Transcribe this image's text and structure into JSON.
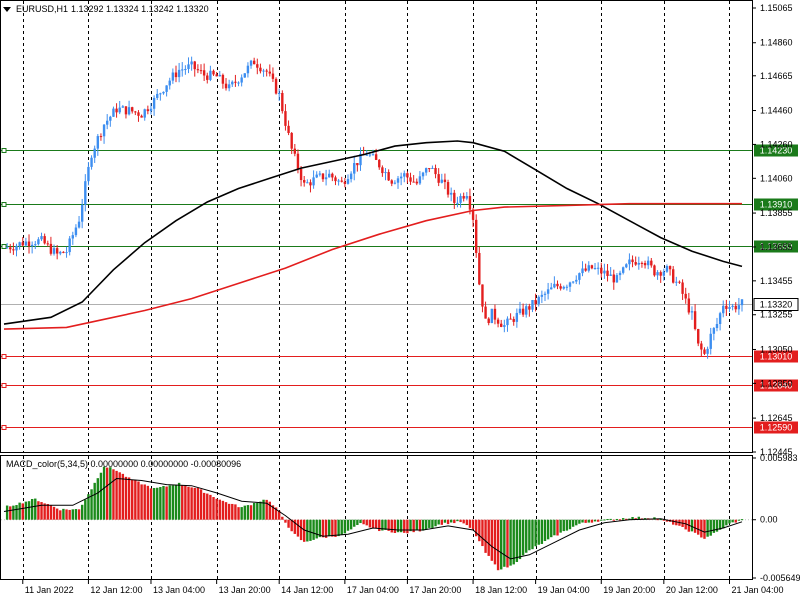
{
  "header": {
    "symbol": "EURUSD,H1",
    "ohlc": "1.13292 1.13324 1.13242 1.13320"
  },
  "macd_header": {
    "label": "MACD_color(5,34,5) 0.00000000 0.00000000 -0.00080096"
  },
  "colors": {
    "bull": "#3d8ef0",
    "bear": "#e31e1e",
    "sma_black": "#000000",
    "sma_red": "#e31e1e",
    "support_green": "#1a7a1a",
    "resistance_red": "#e31e1e",
    "macd_pos": "#1a8a1a",
    "macd_neg": "#e31e1e",
    "current_price_line": "#b0b0b0"
  },
  "chart_data": [
    {
      "type": "candlestick",
      "title": "EURUSD,H1",
      "ylim": [
        1.12445,
        1.15065
      ],
      "y_ticks": [
        "1.15065",
        "1.14860",
        "1.14665",
        "1.14460",
        "1.14260",
        "1.14060",
        "1.13855",
        "1.13655",
        "1.13455",
        "1.13255",
        "1.13050",
        "1.12850",
        "1.12645",
        "1.12445"
      ],
      "x_ticks": [
        "11 Jan 2022",
        "12 Jan 12:00",
        "13 Jan 04:00",
        "13 Jan 20:00",
        "14 Jan 12:00",
        "17 Jan 04:00",
        "17 Jan 20:00",
        "18 Jan 12:00",
        "19 Jan 04:00",
        "19 Jan 20:00",
        "20 Jan 12:00",
        "21 Jan 04:00"
      ],
      "current_price": "1.13320",
      "horizontal_levels": [
        {
          "value": "1.14230",
          "role": "support"
        },
        {
          "value": "1.13910",
          "role": "support"
        },
        {
          "value": "1.13660",
          "role": "support"
        },
        {
          "value": "1.13010",
          "role": "resistance"
        },
        {
          "value": "1.12840",
          "role": "resistance"
        },
        {
          "value": "1.12590",
          "role": "resistance"
        }
      ],
      "price_path": [
        [
          0,
          1.1365
        ],
        [
          3,
          1.1366
        ],
        [
          6,
          1.1368
        ],
        [
          9,
          1.1369
        ],
        [
          12,
          1.1369
        ],
        [
          15,
          1.1364
        ],
        [
          17,
          1.1361
        ],
        [
          20,
          1.1363
        ],
        [
          24,
          1.1382
        ],
        [
          28,
          1.1421
        ],
        [
          32,
          1.1438
        ],
        [
          36,
          1.1447
        ],
        [
          40,
          1.1446
        ],
        [
          44,
          1.1444
        ],
        [
          48,
          1.1452
        ],
        [
          52,
          1.1462
        ],
        [
          56,
          1.147
        ],
        [
          60,
          1.1472
        ],
        [
          64,
          1.1467
        ],
        [
          68,
          1.1466
        ],
        [
          72,
          1.1459
        ],
        [
          76,
          1.1467
        ],
        [
          80,
          1.1475
        ],
        [
          84,
          1.1469
        ],
        [
          88,
          1.1455
        ],
        [
          92,
          1.1423
        ],
        [
          96,
          1.1402
        ],
        [
          100,
          1.1406
        ],
        [
          104,
          1.1408
        ],
        [
          108,
          1.1403
        ],
        [
          112,
          1.1414
        ],
        [
          116,
          1.1421
        ],
        [
          120,
          1.1414
        ],
        [
          124,
          1.1405
        ],
        [
          128,
          1.1408
        ],
        [
          132,
          1.1403
        ],
        [
          136,
          1.1413
        ],
        [
          140,
          1.1404
        ],
        [
          144,
          1.1392
        ],
        [
          148,
          1.1398
        ],
        [
          150,
          1.1383
        ],
        [
          152,
          1.1344
        ],
        [
          154,
          1.1321
        ],
        [
          156,
          1.1326
        ],
        [
          160,
          1.1319
        ],
        [
          164,
          1.1325
        ],
        [
          168,
          1.133
        ],
        [
          172,
          1.1336
        ],
        [
          176,
          1.1342
        ],
        [
          180,
          1.1344
        ],
        [
          184,
          1.135
        ],
        [
          188,
          1.1353
        ],
        [
          192,
          1.135
        ],
        [
          196,
          1.1346
        ],
        [
          200,
          1.1356
        ],
        [
          204,
          1.1359
        ],
        [
          208,
          1.1351
        ],
        [
          212,
          1.1352
        ],
        [
          216,
          1.1342
        ],
        [
          220,
          1.1325
        ],
        [
          222,
          1.1307
        ],
        [
          224,
          1.1302
        ],
        [
          226,
          1.1313
        ],
        [
          228,
          1.132
        ],
        [
          230,
          1.1332
        ],
        [
          233,
          1.133
        ],
        [
          236,
          1.1332
        ]
      ],
      "series": [
        {
          "name": "",
          "type": "line",
          "values": [
            [
              0,
              1.132
            ],
            [
              15,
              1.1324
            ],
            [
              25,
              1.1333
            ],
            [
              35,
              1.1352
            ],
            [
              45,
              1.1368
            ],
            [
              55,
              1.1381
            ],
            [
              65,
              1.1392
            ],
            [
              75,
              1.14
            ],
            [
              85,
              1.1406
            ],
            [
              95,
              1.1412
            ],
            [
              105,
              1.1416
            ],
            [
              115,
              1.142
            ],
            [
              125,
              1.1425
            ],
            [
              135,
              1.1427
            ],
            [
              145,
              1.1428
            ],
            [
              150,
              1.1427
            ],
            [
              160,
              1.1422
            ],
            [
              170,
              1.1411
            ],
            [
              180,
              1.14
            ],
            [
              190,
              1.1391
            ],
            [
              200,
              1.1381
            ],
            [
              210,
              1.1371
            ],
            [
              220,
              1.1363
            ],
            [
              230,
              1.1357
            ],
            [
              236,
              1.1354
            ]
          ]
        },
        {
          "name": "",
          "type": "line",
          "values": [
            [
              0,
              1.1317
            ],
            [
              20,
              1.1318
            ],
            [
              30,
              1.1322
            ],
            [
              45,
              1.1328
            ],
            [
              60,
              1.1335
            ],
            [
              75,
              1.1344
            ],
            [
              90,
              1.1353
            ],
            [
              105,
              1.1364
            ],
            [
              120,
              1.1373
            ],
            [
              135,
              1.1381
            ],
            [
              150,
              1.1387
            ],
            [
              160,
              1.1389
            ],
            [
              180,
              1.139
            ],
            [
              200,
              1.1391
            ],
            [
              220,
              1.1391
            ],
            [
              236,
              1.1391
            ]
          ]
        }
      ]
    },
    {
      "type": "bar",
      "title": "MACD_color(5,34,5)",
      "ylim": [
        -0.005649,
        0.005983
      ],
      "y_ticks": [
        "0.005983",
        "0.00",
        "-0.005649"
      ],
      "histogram": [
        [
          0,
          0.0012
        ],
        [
          10,
          0.002
        ],
        [
          18,
          0.001
        ],
        [
          24,
          0.001
        ],
        [
          28,
          0.003
        ],
        [
          32,
          0.0052
        ],
        [
          36,
          0.0048
        ],
        [
          40,
          0.004
        ],
        [
          48,
          0.003
        ],
        [
          56,
          0.0035
        ],
        [
          62,
          0.003
        ],
        [
          70,
          0.0018
        ],
        [
          76,
          0.0012
        ],
        [
          84,
          0.002
        ],
        [
          88,
          0.0008
        ],
        [
          92,
          -0.0012
        ],
        [
          96,
          -0.0022
        ],
        [
          100,
          -0.0018
        ],
        [
          108,
          -0.0015
        ],
        [
          114,
          -0.0004
        ],
        [
          120,
          -0.001
        ],
        [
          128,
          -0.0013
        ],
        [
          134,
          -0.001
        ],
        [
          140,
          -0.0004
        ],
        [
          146,
          -0.0002
        ],
        [
          150,
          -0.001
        ],
        [
          154,
          -0.0032
        ],
        [
          158,
          -0.0048
        ],
        [
          162,
          -0.0045
        ],
        [
          168,
          -0.003
        ],
        [
          176,
          -0.0016
        ],
        [
          184,
          -0.0004
        ],
        [
          190,
          -0.0001
        ],
        [
          200,
          0.0002
        ],
        [
          208,
          0.0002
        ],
        [
          214,
          -0.0004
        ],
        [
          220,
          -0.0012
        ],
        [
          224,
          -0.0018
        ],
        [
          228,
          -0.0012
        ],
        [
          232,
          -0.0004
        ],
        [
          236,
          0.0
        ]
      ],
      "signal": [
        [
          0,
          0.0008
        ],
        [
          12,
          0.0014
        ],
        [
          22,
          0.0014
        ],
        [
          30,
          0.0026
        ],
        [
          36,
          0.004
        ],
        [
          44,
          0.0038
        ],
        [
          52,
          0.0034
        ],
        [
          60,
          0.0033
        ],
        [
          68,
          0.0026
        ],
        [
          76,
          0.0018
        ],
        [
          84,
          0.0016
        ],
        [
          90,
          0.0004
        ],
        [
          96,
          -0.001
        ],
        [
          102,
          -0.0016
        ],
        [
          110,
          -0.0014
        ],
        [
          118,
          -0.0008
        ],
        [
          126,
          -0.001
        ],
        [
          134,
          -0.001
        ],
        [
          142,
          -0.0006
        ],
        [
          150,
          -0.001
        ],
        [
          156,
          -0.0026
        ],
        [
          162,
          -0.0038
        ],
        [
          168,
          -0.0034
        ],
        [
          176,
          -0.0022
        ],
        [
          184,
          -0.001
        ],
        [
          192,
          -0.0003
        ],
        [
          200,
          0.0
        ],
        [
          210,
          0.0001
        ],
        [
          218,
          -0.0004
        ],
        [
          224,
          -0.0012
        ],
        [
          230,
          -0.0008
        ],
        [
          236,
          -0.0002
        ]
      ]
    }
  ]
}
